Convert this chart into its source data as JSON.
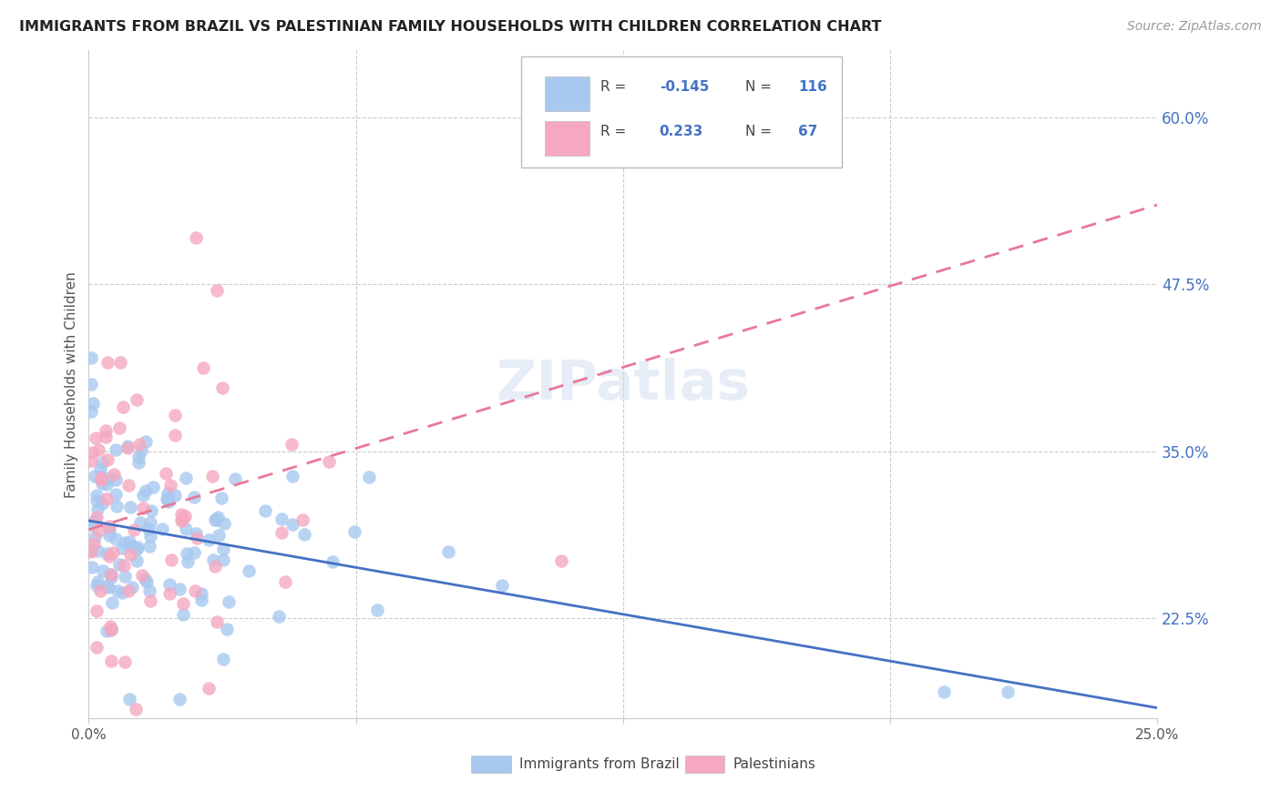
{
  "title": "IMMIGRANTS FROM BRAZIL VS PALESTINIAN FAMILY HOUSEHOLDS WITH CHILDREN CORRELATION CHART",
  "source": "Source: ZipAtlas.com",
  "ylabel_label": "Family Households with Children",
  "legend_label1": "Immigrants from Brazil",
  "legend_label2": "Palestinians",
  "R1": -0.145,
  "N1": 116,
  "R2": 0.233,
  "N2": 67,
  "color_blue": "#A8C8F0",
  "color_pink": "#F5A8C0",
  "color_text_blue": "#4472C4",
  "color_line_blue": "#4472C4",
  "color_line_pink": "#E87898",
  "grid_color": "#CCCCCC",
  "bg_color": "#FFFFFF",
  "yticks": [
    22.5,
    35.0,
    47.5,
    60.0
  ],
  "ytick_labels": [
    "22.5%",
    "35.0%",
    "47.5%",
    "60.0%"
  ],
  "xmin": 0,
  "xmax": 25,
  "ymin": 15,
  "ymax": 65,
  "watermark": "ZIPatlas"
}
